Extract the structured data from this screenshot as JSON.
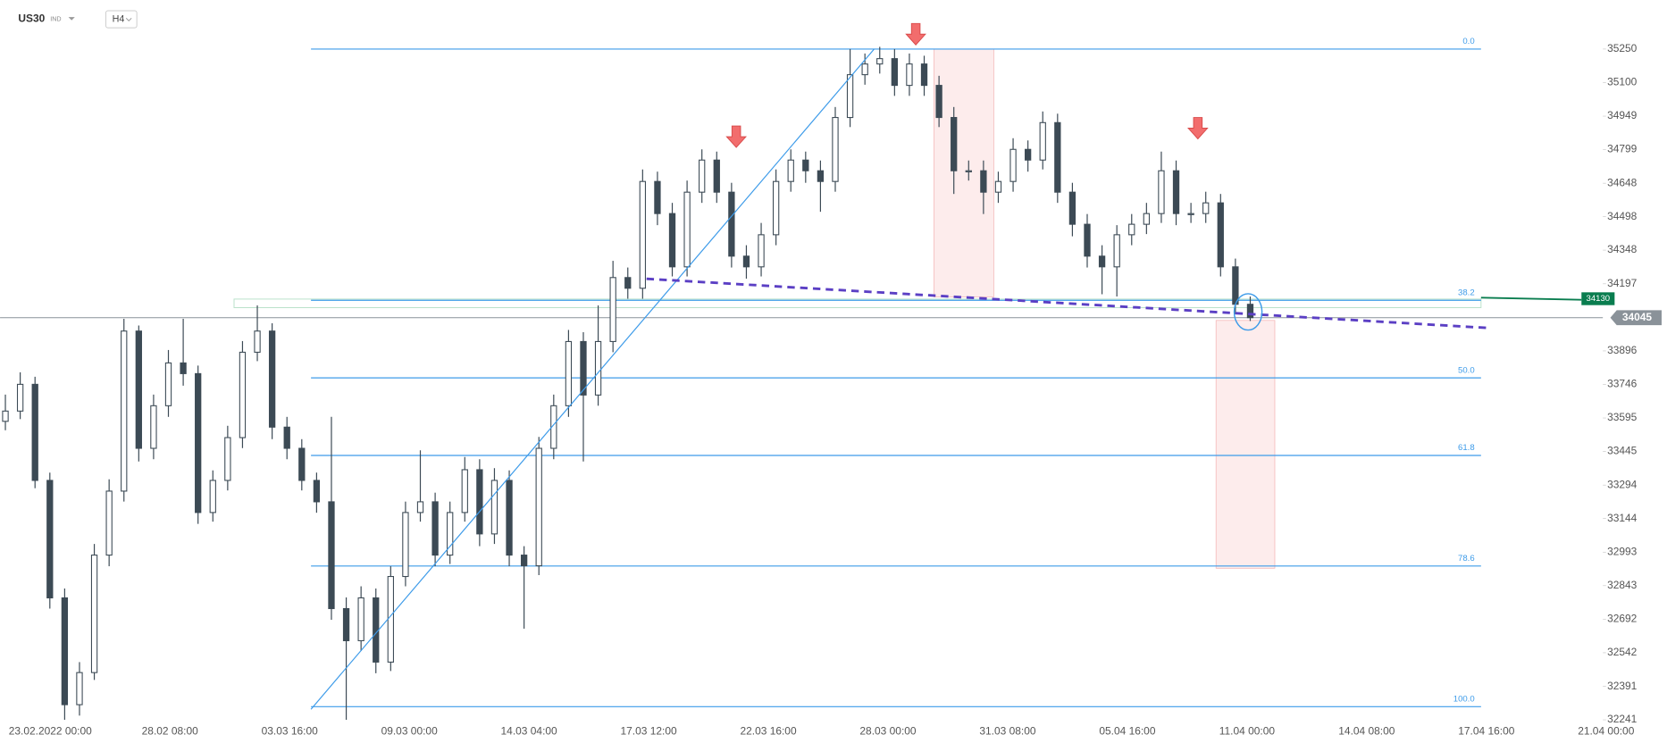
{
  "header": {
    "symbol": "US30",
    "market": "IND",
    "interval": "H4"
  },
  "chart_data": {
    "type": "candlestick",
    "ylim": [
      32231,
      35470
    ],
    "yticks": [
      35250,
      35100,
      34949,
      34799,
      34648,
      34498,
      34348,
      34197,
      33896,
      33746,
      33595,
      33445,
      33294,
      33144,
      32993,
      32843,
      32692,
      32542,
      32391,
      32241
    ],
    "xlabels": [
      "23.02.2022  00:00",
      "28.02  08:00",
      "03.03  16:00",
      "09.03  00:00",
      "14.03  04:00",
      "17.03  12:00",
      "22.03  16:00",
      "28.03  00:00",
      "31.03  08:00",
      "05.04  16:00",
      "11.04  00:00",
      "14.04  08:00",
      "17.04  16:00",
      "21.04  00:00"
    ],
    "up_color": "#ffffff",
    "down_color": "#3c4a55",
    "outline_color": "#3c4a55",
    "candles": [
      [
        33580,
        33700,
        33540,
        33626
      ],
      [
        33626,
        33800,
        33590,
        33746
      ],
      [
        33746,
        33780,
        33280,
        33315
      ],
      [
        33315,
        33350,
        32740,
        32788
      ],
      [
        32788,
        32830,
        32241,
        32309
      ],
      [
        32309,
        32500,
        32260,
        32453
      ],
      [
        32453,
        33030,
        32420,
        32980
      ],
      [
        32980,
        33320,
        32930,
        33267
      ],
      [
        33267,
        34040,
        33220,
        33985
      ],
      [
        33985,
        34010,
        33400,
        33459
      ],
      [
        33459,
        33700,
        33410,
        33650
      ],
      [
        33650,
        33900,
        33600,
        33842
      ],
      [
        33842,
        34040,
        33740,
        33794
      ],
      [
        33794,
        33830,
        33120,
        33171
      ],
      [
        33171,
        33360,
        33130,
        33315
      ],
      [
        33315,
        33560,
        33270,
        33507
      ],
      [
        33507,
        33940,
        33460,
        33890
      ],
      [
        33890,
        34100,
        33850,
        33985
      ],
      [
        33985,
        34020,
        33500,
        33554
      ],
      [
        33554,
        33600,
        33410,
        33459
      ],
      [
        33459,
        33500,
        33270,
        33315
      ],
      [
        33315,
        33350,
        33170,
        33219
      ],
      [
        33219,
        33600,
        32690,
        32740
      ],
      [
        32740,
        32790,
        32241,
        32596
      ],
      [
        32596,
        32840,
        32550,
        32788
      ],
      [
        32788,
        32830,
        32450,
        32500
      ],
      [
        32500,
        32930,
        32460,
        32884
      ],
      [
        32884,
        33220,
        32840,
        33171
      ],
      [
        33171,
        33450,
        33130,
        33219
      ],
      [
        33219,
        33260,
        32930,
        32980
      ],
      [
        32980,
        33220,
        32940,
        33171
      ],
      [
        33171,
        33420,
        33130,
        33363
      ],
      [
        33363,
        33410,
        33020,
        33075
      ],
      [
        33075,
        33370,
        33030,
        33315
      ],
      [
        33315,
        33360,
        32930,
        32980
      ],
      [
        32980,
        33020,
        32650,
        32932
      ],
      [
        32932,
        33510,
        32890,
        33459
      ],
      [
        33459,
        33700,
        33410,
        33650
      ],
      [
        33650,
        33990,
        33600,
        33938
      ],
      [
        33938,
        33980,
        33400,
        33698
      ],
      [
        33698,
        34100,
        33650,
        33938
      ],
      [
        33938,
        34300,
        33890,
        34225
      ],
      [
        34225,
        34270,
        34130,
        34177
      ],
      [
        34177,
        34710,
        34130,
        34656
      ],
      [
        34656,
        34700,
        34460,
        34512
      ],
      [
        34512,
        34560,
        34230,
        34273
      ],
      [
        34273,
        34660,
        34230,
        34608
      ],
      [
        34608,
        34800,
        34560,
        34752
      ],
      [
        34752,
        34790,
        34560,
        34608
      ],
      [
        34608,
        34650,
        34270,
        34321
      ],
      [
        34321,
        34370,
        34220,
        34273
      ],
      [
        34273,
        34470,
        34230,
        34417
      ],
      [
        34417,
        34710,
        34370,
        34656
      ],
      [
        34656,
        34800,
        34610,
        34752
      ],
      [
        34752,
        34790,
        34650,
        34704
      ],
      [
        34704,
        34750,
        34520,
        34656
      ],
      [
        34656,
        34990,
        34610,
        34943
      ],
      [
        34943,
        35250,
        34900,
        35135
      ],
      [
        35135,
        35230,
        35090,
        35183
      ],
      [
        35183,
        35260,
        35140,
        35207
      ],
      [
        35207,
        35250,
        35040,
        35087
      ],
      [
        35087,
        35230,
        35040,
        35183
      ],
      [
        35183,
        35220,
        35040,
        35087
      ],
      [
        35087,
        35130,
        34900,
        34943
      ],
      [
        34943,
        34990,
        34600,
        34704
      ],
      [
        34704,
        34750,
        34660,
        34704
      ],
      [
        34704,
        34750,
        34510,
        34608
      ],
      [
        34608,
        34700,
        34560,
        34656
      ],
      [
        34656,
        34850,
        34610,
        34800
      ],
      [
        34800,
        34840,
        34700,
        34752
      ],
      [
        34752,
        34970,
        34710,
        34920
      ],
      [
        34920,
        34960,
        34560,
        34608
      ],
      [
        34608,
        34650,
        34410,
        34464
      ],
      [
        34464,
        34510,
        34270,
        34321
      ],
      [
        34321,
        34370,
        34150,
        34273
      ],
      [
        34273,
        34460,
        34140,
        34417
      ],
      [
        34417,
        34510,
        34370,
        34464
      ],
      [
        34464,
        34560,
        34420,
        34512
      ],
      [
        34512,
        34790,
        34470,
        34704
      ],
      [
        34704,
        34750,
        34460,
        34512
      ],
      [
        34512,
        34560,
        34470,
        34512
      ],
      [
        34512,
        34610,
        34470,
        34560
      ],
      [
        34560,
        34600,
        34230,
        34273
      ],
      [
        34273,
        34310,
        34060,
        34105
      ],
      [
        34105,
        34140,
        34030,
        34045
      ]
    ],
    "fib_color": "#3d9be9",
    "fib_levels": [
      {
        "label": "0.0",
        "value": 35250
      },
      {
        "label": "38.2",
        "value": 34123
      },
      {
        "label": "50.0",
        "value": 33775
      },
      {
        "label": "61.8",
        "value": 33427
      },
      {
        "label": "78.6",
        "value": 32931
      },
      {
        "label": "100.0",
        "value": 32300
      }
    ],
    "level_line": {
      "value": 34130,
      "color": "#0a7d4f"
    },
    "last_price": {
      "value": 34045,
      "color": "#8a9299"
    }
  }
}
